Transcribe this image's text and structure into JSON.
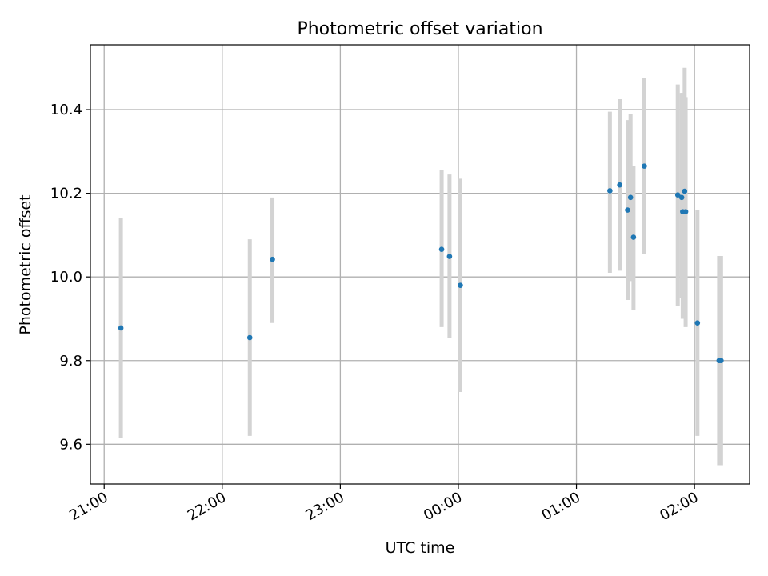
{
  "chart_data": {
    "type": "scatter",
    "title": "Photometric offset variation",
    "xlabel": "UTC time",
    "ylabel": "Photometric offset",
    "x_axis": "time",
    "xlim": [
      "20:53",
      "02:28"
    ],
    "ylim": [
      9.505,
      10.555
    ],
    "x_ticks": [
      "21:00",
      "22:00",
      "23:00",
      "00:00",
      "01:00",
      "02:00"
    ],
    "y_ticks": [
      "9.6",
      "9.8",
      "10.0",
      "10.2",
      "10.4"
    ],
    "y_tick_values": [
      9.6,
      9.8,
      10.0,
      10.2,
      10.4
    ],
    "grid": true,
    "colors": {
      "points": "#1f77b4",
      "errorbars": "#d3d3d3",
      "grid": "#b0b0b0"
    },
    "points": [
      {
        "t": "21:08:30",
        "y": 9.878,
        "lo": 9.615,
        "hi": 10.14
      },
      {
        "t": "22:14:00",
        "y": 9.855,
        "lo": 9.62,
        "hi": 10.09
      },
      {
        "t": "22:25:30",
        "y": 10.042,
        "lo": 9.89,
        "hi": 10.19
      },
      {
        "t": "23:51:30",
        "y": 10.066,
        "lo": 9.88,
        "hi": 10.255
      },
      {
        "t": "23:55:30",
        "y": 10.049,
        "lo": 9.855,
        "hi": 10.245
      },
      {
        "t": "00:01:00",
        "y": 9.98,
        "lo": 9.725,
        "hi": 10.235
      },
      {
        "t": "01:17:00",
        "y": 10.206,
        "lo": 10.01,
        "hi": 10.395
      },
      {
        "t": "01:22:00",
        "y": 10.22,
        "lo": 10.015,
        "hi": 10.425
      },
      {
        "t": "01:26:00",
        "y": 10.16,
        "lo": 9.945,
        "hi": 10.375
      },
      {
        "t": "01:27:30",
        "y": 10.19,
        "lo": 9.99,
        "hi": 10.39
      },
      {
        "t": "01:29:00",
        "y": 10.095,
        "lo": 9.92,
        "hi": 10.265
      },
      {
        "t": "01:34:30",
        "y": 10.265,
        "lo": 10.055,
        "hi": 10.475
      },
      {
        "t": "01:51:30",
        "y": 10.196,
        "lo": 9.93,
        "hi": 10.46
      },
      {
        "t": "01:53:30",
        "y": 10.19,
        "lo": 9.95,
        "hi": 10.44
      },
      {
        "t": "01:54:00",
        "y": 10.156,
        "lo": 9.9,
        "hi": 10.44
      },
      {
        "t": "01:55:00",
        "y": 10.205,
        "lo": 9.9,
        "hi": 10.5
      },
      {
        "t": "01:55:30",
        "y": 10.156,
        "lo": 9.88,
        "hi": 10.43
      },
      {
        "t": "02:01:30",
        "y": 9.89,
        "lo": 9.62,
        "hi": 10.16
      },
      {
        "t": "02:12:30",
        "y": 9.8,
        "lo": 9.55,
        "hi": 10.05
      },
      {
        "t": "02:13:30",
        "y": 9.8,
        "lo": 9.55,
        "hi": 10.05
      }
    ]
  }
}
